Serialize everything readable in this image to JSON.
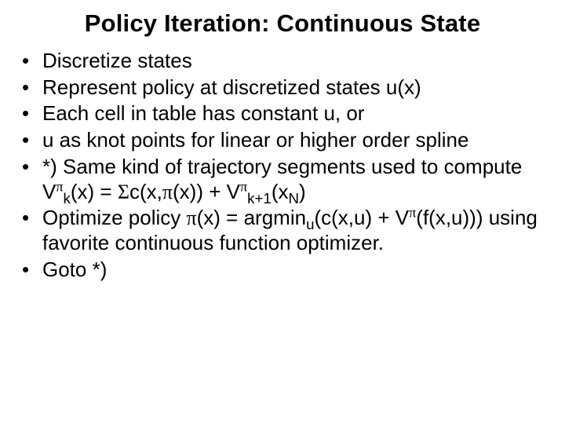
{
  "title": "Policy Iteration: Continuous State",
  "bullets": {
    "b1": "Discretize states",
    "b2": "Represent policy at discretized states u(x)",
    "b3": "Each cell in table has constant u, or",
    "b4": "u as knot points for linear or higher order spline",
    "b5_pre": "*) Same kind of trajectory segments used to compute V",
    "b5_mid1": "(x) = ",
    "b5_mid2": "c(x,",
    "b5_mid3": "(x)) + V",
    "b5_post": "(x",
    "b5_end": ")",
    "b6_pre": "Optimize policy ",
    "b6_mid1": "(x) = argmin",
    "b6_mid2": "(c(x,u) + V",
    "b6_post": "(f(x,u))) using favorite continuous function optimizer.",
    "b7": "Goto *)",
    "sym": {
      "pi": "π",
      "Sigma": "Σ",
      "k": "k",
      "k1": "k+1",
      "N": "N",
      "u": "u"
    }
  },
  "colors": {
    "background": "#ffffff",
    "text": "#000000"
  },
  "typography": {
    "title_fontsize": 31,
    "body_fontsize": 26,
    "font_family": "Arial"
  }
}
